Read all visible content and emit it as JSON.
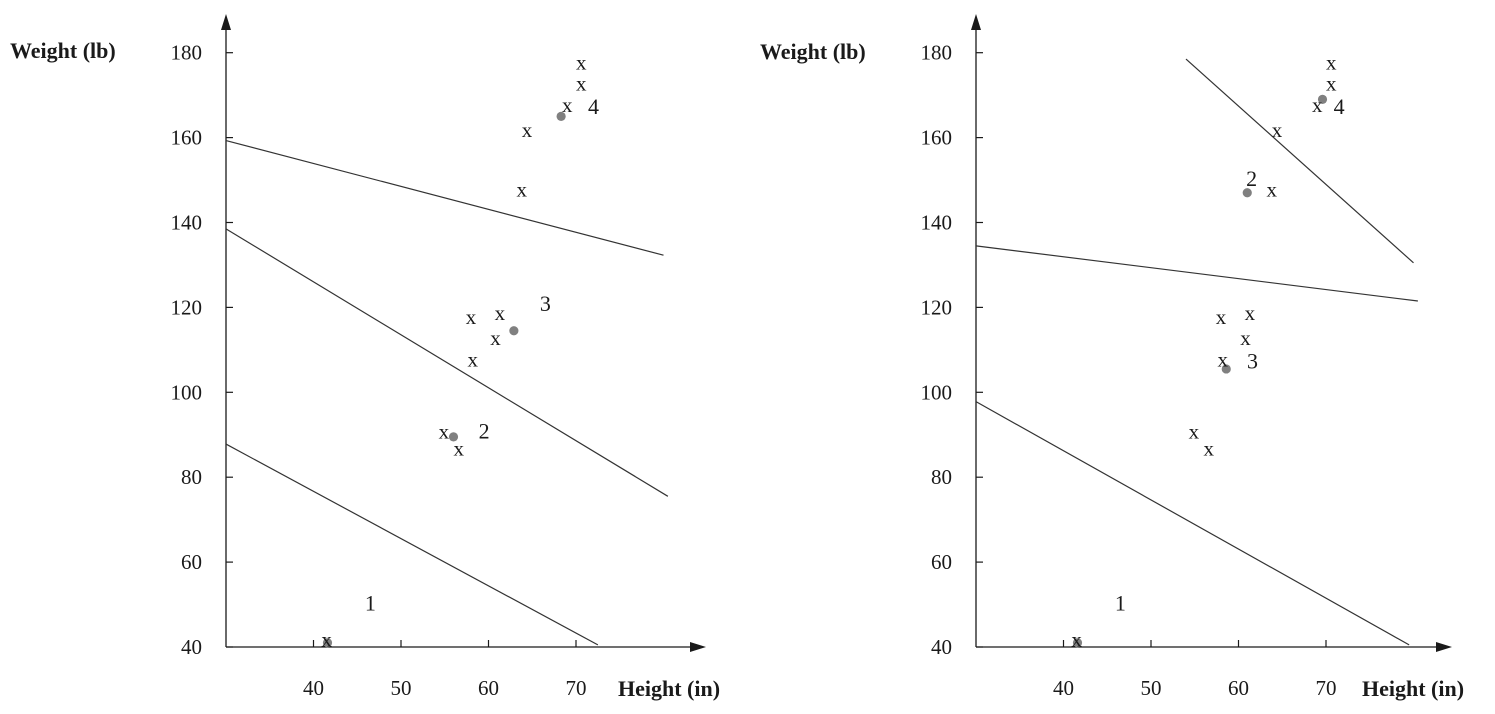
{
  "chart_data": [
    {
      "type": "scatter",
      "title": "",
      "xlabel": "Height (in)",
      "ylabel": "Weight (lb)",
      "xlim": [
        30,
        83
      ],
      "ylim": [
        40,
        190
      ],
      "xticks": [
        "40",
        "50",
        "60",
        "70"
      ],
      "yticks": [
        "40",
        "60",
        "80",
        "100",
        "120",
        "140",
        "160",
        "180"
      ],
      "points": [
        {
          "x": 41.5,
          "y": 41.5,
          "marker": "x"
        },
        {
          "x": 54.9,
          "y": 90.5,
          "marker": "x"
        },
        {
          "x": 56.6,
          "y": 86.5,
          "marker": "x"
        },
        {
          "x": 58.2,
          "y": 107.5,
          "marker": "x"
        },
        {
          "x": 58.0,
          "y": 117.5,
          "marker": "x"
        },
        {
          "x": 60.8,
          "y": 112.5,
          "marker": "x"
        },
        {
          "x": 61.3,
          "y": 118.5,
          "marker": "x"
        },
        {
          "x": 63.8,
          "y": 147.5,
          "marker": "x"
        },
        {
          "x": 64.4,
          "y": 161.5,
          "marker": "x"
        },
        {
          "x": 69.0,
          "y": 167.5,
          "marker": "x"
        },
        {
          "x": 70.6,
          "y": 172.5,
          "marker": "x"
        },
        {
          "x": 70.6,
          "y": 177.5,
          "marker": "x"
        }
      ],
      "centroids": [
        {
          "label": "1",
          "x": 41.6,
          "y": 41.0,
          "label_x": 46.5,
          "label_y": 50.5
        },
        {
          "label": "2",
          "x": 56.0,
          "y": 89.5,
          "label_x": 59.5,
          "label_y": 91.0
        },
        {
          "label": "3",
          "x": 62.9,
          "y": 114.5,
          "label_x": 66.5,
          "label_y": 121.0
        },
        {
          "label": "4",
          "x": 68.3,
          "y": 165.0,
          "label_x": 72.0,
          "label_y": 167.5
        }
      ],
      "boundaries": [
        {
          "x1": 30.0,
          "y1": 159.3,
          "x2": 80.0,
          "y2": 132.3
        },
        {
          "x1": 30.0,
          "y1": 138.5,
          "x2": 80.5,
          "y2": 75.5
        },
        {
          "x1": 30.0,
          "y1": 87.8,
          "x2": 72.5,
          "y2": 40.5
        }
      ]
    },
    {
      "type": "scatter",
      "title": "",
      "xlabel": "Height (in)",
      "ylabel": "Weight (lb)",
      "xlim": [
        30,
        83
      ],
      "ylim": [
        40,
        190
      ],
      "xticks": [
        "40",
        "50",
        "60",
        "70"
      ],
      "yticks": [
        "40",
        "60",
        "80",
        "100",
        "120",
        "140",
        "160",
        "180"
      ],
      "points": [
        {
          "x": 41.5,
          "y": 41.5,
          "marker": "x"
        },
        {
          "x": 54.9,
          "y": 90.5,
          "marker": "x"
        },
        {
          "x": 56.6,
          "y": 86.5,
          "marker": "x"
        },
        {
          "x": 58.2,
          "y": 107.5,
          "marker": "x"
        },
        {
          "x": 58.0,
          "y": 117.5,
          "marker": "x"
        },
        {
          "x": 60.8,
          "y": 112.5,
          "marker": "x"
        },
        {
          "x": 61.3,
          "y": 118.5,
          "marker": "x"
        },
        {
          "x": 63.8,
          "y": 147.5,
          "marker": "x"
        },
        {
          "x": 64.4,
          "y": 161.5,
          "marker": "x"
        },
        {
          "x": 69.0,
          "y": 167.5,
          "marker": "x"
        },
        {
          "x": 70.6,
          "y": 172.5,
          "marker": "x"
        },
        {
          "x": 70.6,
          "y": 177.5,
          "marker": "x"
        }
      ],
      "centroids": [
        {
          "label": "1",
          "x": 41.6,
          "y": 41.0,
          "label_x": 46.5,
          "label_y": 50.5
        },
        {
          "label": "2",
          "x": 61.0,
          "y": 147.0,
          "label_x": 61.5,
          "label_y": 150.5
        },
        {
          "label": "3",
          "x": 58.6,
          "y": 105.5,
          "label_x": 61.6,
          "label_y": 107.5
        },
        {
          "label": "4",
          "x": 69.6,
          "y": 169.0,
          "label_x": 71.5,
          "label_y": 167.5
        }
      ],
      "boundaries": [
        {
          "x1": 54.0,
          "y1": 178.5,
          "x2": 80.0,
          "y2": 130.5
        },
        {
          "x1": 30.0,
          "y1": 134.5,
          "x2": 80.5,
          "y2": 121.5
        },
        {
          "x1": 30.0,
          "y1": 97.8,
          "x2": 79.5,
          "y2": 40.5
        }
      ]
    }
  ]
}
